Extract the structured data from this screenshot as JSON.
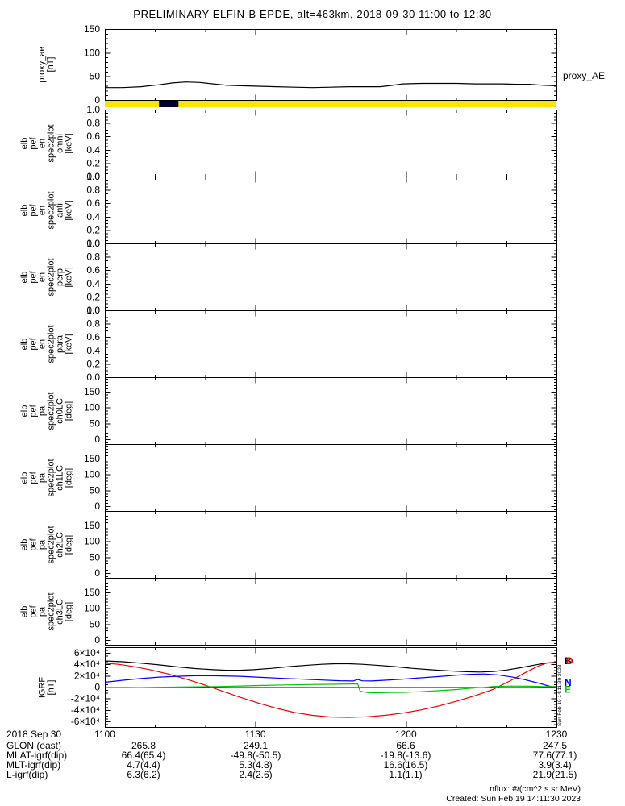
{
  "title": "PRELIMINARY ELFIN-B EPDE, alt=463km, 2018-09-30 11:00 to 12:30",
  "colors": {
    "black": "#000000",
    "red": "#ee0000",
    "blue": "#0000ff",
    "green": "#00c800",
    "yellow": "#ffe400",
    "bar_segment": "#000033"
  },
  "chart_data": {
    "type": "line",
    "x_axis": {
      "major_labels": [
        "1100",
        "1130",
        "1200",
        "1230"
      ],
      "major_fracs": [
        0,
        0.33333,
        0.66667,
        1
      ],
      "minor_tick_every_fraction": 0.11111
    },
    "panels": [
      {
        "id": "proxy_ae",
        "ylabel_lines": [
          "proxy_ae",
          "[nT]"
        ],
        "yrange": [
          0,
          150
        ],
        "yticks": [
          0,
          50,
          100,
          150
        ],
        "ytick_labels": [
          "0",
          "50",
          "100",
          "150"
        ],
        "yminor": 10,
        "right_label": "proxy_AE",
        "series": [
          {
            "name": "proxy_AE",
            "color_key": "black",
            "x": [
              0,
              0.04,
              0.08,
              0.12,
              0.15,
              0.18,
              0.21,
              0.24,
              0.27,
              0.3,
              0.34,
              0.38,
              0.42,
              0.46,
              0.5,
              0.54,
              0.58,
              0.61,
              0.63,
              0.66,
              0.7,
              0.74,
              0.78,
              0.82,
              0.85,
              0.88,
              0.91,
              0.94,
              0.97,
              1.0
            ],
            "y": [
              26,
              26,
              28,
              32,
              36,
              38,
              37,
              34,
              31,
              30,
              29,
              28,
              27,
              26,
              27,
              28,
              28,
              28,
              30,
              34,
              35,
              35,
              35,
              34,
              34,
              34,
              33,
              33,
              31,
              30
            ]
          }
        ]
      },
      {
        "id": "availability_bar",
        "type": "strip",
        "bg_key": "yellow",
        "segments": [
          {
            "start": 0.12,
            "end": 0.163,
            "color_key": "bar_segment"
          }
        ]
      },
      {
        "id": "elb_pef_en_spec2plot_omni",
        "ylabel_lines": [
          "elb",
          "pef",
          "en",
          "spec2plot",
          "omni",
          "[keV]"
        ],
        "yrange": [
          0,
          1
        ],
        "yticks": [
          0,
          0.2,
          0.4,
          0.6,
          0.8,
          1
        ],
        "ytick_labels": [
          "0.0",
          "0.2",
          "0.4",
          "0.6",
          "0.8",
          "1.0"
        ],
        "yminor": 0.05,
        "series": []
      },
      {
        "id": "elb_pef_en_spec2plot_anti",
        "ylabel_lines": [
          "elb",
          "pef",
          "en",
          "spec2plot",
          "anti",
          "[keV]"
        ],
        "yrange": [
          0,
          1
        ],
        "yticks": [
          0,
          0.2,
          0.4,
          0.6,
          0.8,
          1
        ],
        "ytick_labels": [
          "0.0",
          "0.2",
          "0.4",
          "0.6",
          "0.8",
          "1.0"
        ],
        "yminor": 0.05,
        "series": []
      },
      {
        "id": "elb_pef_en_spec2plot_perp",
        "ylabel_lines": [
          "elb",
          "pef",
          "en",
          "spec2plot",
          "perp",
          "[keV]"
        ],
        "yrange": [
          0,
          1
        ],
        "yticks": [
          0,
          0.2,
          0.4,
          0.6,
          0.8,
          1
        ],
        "ytick_labels": [
          "0.0",
          "0.2",
          "0.4",
          "0.6",
          "0.8",
          "1.0"
        ],
        "yminor": 0.05,
        "series": []
      },
      {
        "id": "elb_pef_en_spec2plot_para",
        "ylabel_lines": [
          "elb",
          "pef",
          "en",
          "spec2plot",
          "para",
          "[keV]"
        ],
        "yrange": [
          0,
          1
        ],
        "yticks": [
          0,
          0.2,
          0.4,
          0.6,
          0.8,
          1
        ],
        "ytick_labels": [
          "0.0",
          "0.2",
          "0.4",
          "0.6",
          "0.8",
          "1.0"
        ],
        "yminor": 0.05,
        "series": []
      },
      {
        "id": "elb_pef_pa_spec2plot_ch0LC",
        "ylabel_lines": [
          "elb",
          "pef",
          "pa",
          "spec2plot",
          "ch0LC",
          "[deg]"
        ],
        "yrange": [
          -15,
          195
        ],
        "yticks": [
          0,
          50,
          100,
          150
        ],
        "ytick_labels": [
          "0",
          "50",
          "100",
          "150"
        ],
        "yminor": 10,
        "series": []
      },
      {
        "id": "elb_pef_pa_spec2plot_ch1LC",
        "ylabel_lines": [
          "elb",
          "pef",
          "pa",
          "spec2plot",
          "ch1LC",
          "[deg]"
        ],
        "yrange": [
          -15,
          195
        ],
        "yticks": [
          0,
          50,
          100,
          150
        ],
        "ytick_labels": [
          "0",
          "50",
          "100",
          "150"
        ],
        "yminor": 10,
        "series": []
      },
      {
        "id": "elb_pef_pa_spec2plot_ch2LC",
        "ylabel_lines": [
          "elb",
          "pef",
          "pa",
          "spec2plot",
          "ch2LC",
          "[deg]"
        ],
        "yrange": [
          -15,
          195
        ],
        "yticks": [
          0,
          50,
          100,
          150
        ],
        "ytick_labels": [
          "0",
          "50",
          "100",
          "150"
        ],
        "yminor": 10,
        "series": []
      },
      {
        "id": "elb_pef_pa_spec2plot_ch3LC",
        "ylabel_lines": [
          "elb",
          "pef",
          "pa",
          "spec2plot",
          "ch3LC",
          "[deg]"
        ],
        "yrange": [
          -15,
          195
        ],
        "yticks": [
          0,
          50,
          100,
          150
        ],
        "ytick_labels": [
          "0",
          "50",
          "100",
          "150"
        ],
        "yminor": 10,
        "series": []
      },
      {
        "id": "igrf",
        "ylabel_lines": [
          "IGRF",
          "[nT]"
        ],
        "yrange": [
          -70000,
          70000
        ],
        "yticks": [
          -60000,
          -40000,
          -20000,
          0,
          20000,
          40000,
          60000
        ],
        "ytick_labels": [
          "-6×10⁴",
          "-4×10⁴",
          "-2×10⁴",
          "0",
          "2×10⁴",
          "4×10⁴",
          "6×10⁴"
        ],
        "yminor": 5000,
        "zero_line": true,
        "side_text": "Sun Feb 19 14:11:30 2023",
        "right_labels": [
          {
            "text": "B",
            "color_key": "black",
            "value": 46000,
            "dx": 0
          },
          {
            "text": "D",
            "color_key": "red",
            "value": 46000,
            "dx": 2
          },
          {
            "text": "N",
            "color_key": "blue",
            "value": 8000,
            "dx": 0
          },
          {
            "text": "E",
            "color_key": "green",
            "value": -4500,
            "dx": 0
          }
        ],
        "series": [
          {
            "name": "B",
            "color_key": "black",
            "x": [
              0,
              0.04,
              0.08,
              0.12,
              0.16,
              0.2,
              0.24,
              0.27,
              0.3,
              0.33,
              0.37,
              0.41,
              0.45,
              0.48,
              0.51,
              0.54,
              0.57,
              0.6,
              0.64,
              0.68,
              0.72,
              0.76,
              0.8,
              0.83,
              0.86,
              0.89,
              0.92,
              0.95,
              0.97,
              1.0
            ],
            "y": [
              46000,
              44500,
              42000,
              39000,
              35500,
              32500,
              30500,
              29500,
              29500,
              30500,
              33000,
              36000,
              38500,
              40000,
              41000,
              41000,
              40000,
              38500,
              36000,
              33000,
              30500,
              28500,
              27000,
              26500,
              27500,
              30000,
              34000,
              38500,
              41500,
              44000
            ]
          },
          {
            "name": "D",
            "color_key": "red",
            "x": [
              0,
              0.03,
              0.06,
              0.1,
              0.14,
              0.18,
              0.22,
              0.26,
              0.3,
              0.34,
              0.38,
              0.42,
              0.46,
              0.5,
              0.54,
              0.58,
              0.62,
              0.66,
              0.7,
              0.74,
              0.78,
              0.82,
              0.86,
              0.9,
              0.93,
              0.96,
              0.98,
              1.0
            ],
            "y": [
              42000,
              40000,
              36500,
              30500,
              23000,
              14000,
              4000,
              -7000,
              -18000,
              -28000,
              -37000,
              -44500,
              -49500,
              -52500,
              -53000,
              -52000,
              -49500,
              -45500,
              -40000,
              -33000,
              -24500,
              -15000,
              -4000,
              12000,
              25000,
              37000,
              42500,
              43000
            ]
          },
          {
            "name": "N",
            "color_key": "blue",
            "x": [
              0,
              0.04,
              0.08,
              0.12,
              0.16,
              0.2,
              0.25,
              0.3,
              0.35,
              0.4,
              0.44,
              0.48,
              0.52,
              0.55,
              0.56,
              0.57,
              0.59,
              0.62,
              0.66,
              0.7,
              0.74,
              0.78,
              0.81,
              0.84,
              0.87,
              0.9,
              0.93,
              0.96,
              0.98,
              1.0
            ],
            "y": [
              8500,
              12000,
              15000,
              17500,
              19000,
              20000,
              19800,
              19000,
              17000,
              15200,
              13800,
              12500,
              11200,
              10800,
              13500,
              11000,
              10800,
              12000,
              14000,
              16200,
              18500,
              21000,
              22500,
              23000,
              21500,
              18000,
              13000,
              7000,
              2500,
              -1000
            ]
          },
          {
            "name": "E",
            "color_key": "green",
            "x": [
              0,
              0.05,
              0.1,
              0.15,
              0.2,
              0.25,
              0.3,
              0.35,
              0.4,
              0.45,
              0.5,
              0.54,
              0.56,
              0.565,
              0.58,
              0.6,
              0.63,
              0.66,
              0.7,
              0.74,
              0.78,
              0.81,
              0.84,
              0.86,
              0.9,
              0.94,
              0.97,
              1.0
            ],
            "y": [
              -1200,
              -1200,
              -500,
              0,
              500,
              1000,
              2000,
              3000,
              3800,
              4500,
              5000,
              5500,
              5500,
              -7000,
              -9500,
              -10000,
              -9500,
              -9200,
              -8000,
              -6200,
              -4200,
              -2000,
              -500,
              1200,
              1800,
              1500,
              1000,
              1200
            ]
          }
        ]
      }
    ]
  },
  "bottom_axis": {
    "date_label": "2018 Sep 30",
    "time_labels": [
      "1100",
      "1130",
      "1200",
      "1230"
    ],
    "info_rows": [
      {
        "label": "GLON (east)",
        "values": [
          "265.8",
          "249.1",
          "66.6",
          "247.5"
        ]
      },
      {
        "label": "MLAT-igrf(dip)",
        "values": [
          "66.4(65.4)",
          "-49.8(-50.5)",
          "-19.8(-13.6)",
          "77.6(77.1)"
        ]
      },
      {
        "label": "MLT-igrf(dip)",
        "values": [
          "4.7(4.4)",
          "5.3(4.8)",
          "16.6(16.5)",
          "3.9(3.4)"
        ]
      },
      {
        "label": "L-igrf(dip)",
        "values": [
          "6.3(6.2)",
          "2.4(2.6)",
          "1.1(1.1)",
          "21.9(21.5)"
        ]
      }
    ]
  },
  "footer": {
    "units": "nflux: #/(cm^2 s sr MeV)",
    "created": "Created: Sun Feb 19 14:11:30 2023"
  }
}
